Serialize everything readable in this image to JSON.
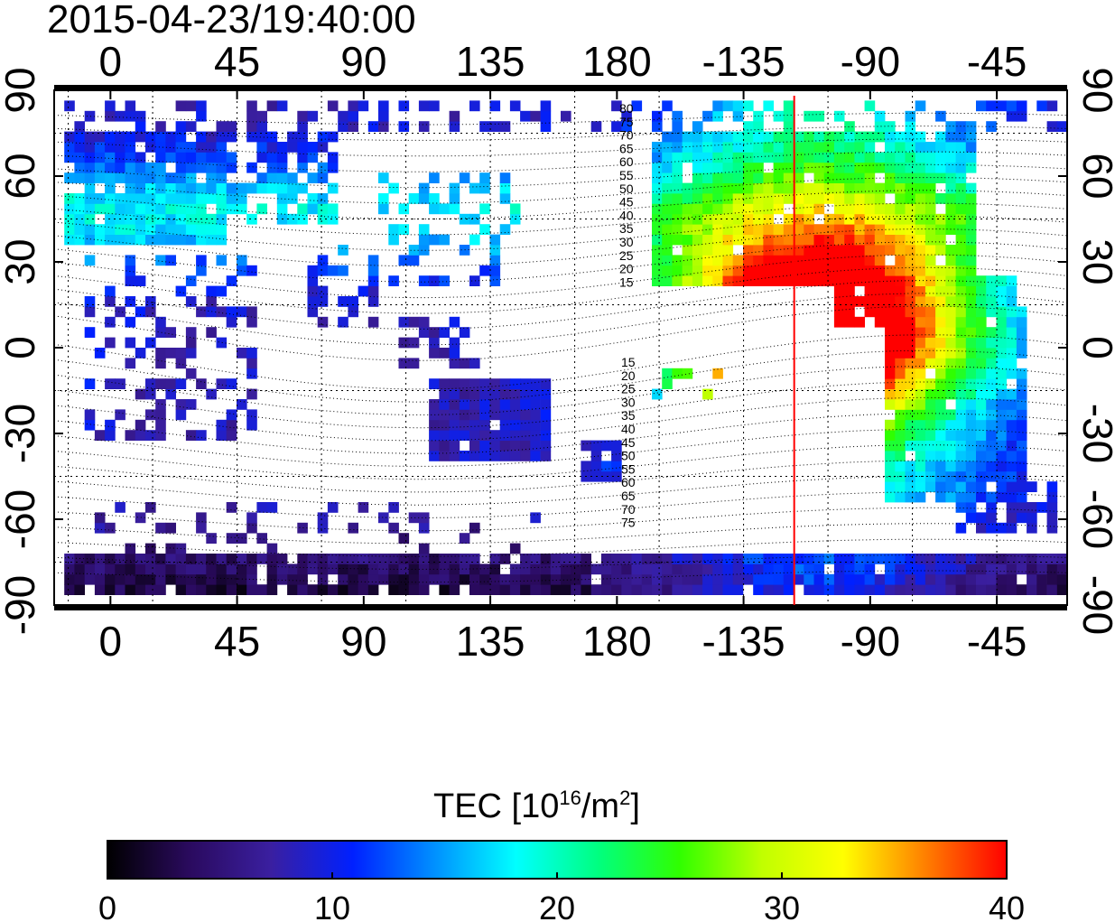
{
  "title": "2015-04-23/19:40:00",
  "map": {
    "lon_ticks": [
      {
        "lon": 0,
        "label": "0"
      },
      {
        "lon": 45,
        "label": "45"
      },
      {
        "lon": 90,
        "label": "90"
      },
      {
        "lon": 135,
        "label": "135"
      },
      {
        "lon": 180,
        "label": "180"
      },
      {
        "lon": 225,
        "label": "-135"
      },
      {
        "lon": 270,
        "label": "-90"
      },
      {
        "lon": 315,
        "label": "-45"
      }
    ],
    "lat_ticks": [
      {
        "lat": 90,
        "label": "90"
      },
      {
        "lat": 60,
        "label": "60"
      },
      {
        "lat": 30,
        "label": "30"
      },
      {
        "lat": 0,
        "label": "0"
      },
      {
        "lat": -30,
        "label": "-30"
      },
      {
        "lat": -60,
        "label": "-60"
      },
      {
        "lat": -90,
        "label": "-90"
      }
    ],
    "lon_range": [
      -20,
      340
    ],
    "lat_range": [
      -90,
      90
    ],
    "grid": true,
    "terminator_lon": 243,
    "terminator_color": "#ff0000",
    "contour_labels_north": [
      "80",
      "75",
      "70",
      "65",
      "60",
      "55",
      "50",
      "45",
      "40",
      "35",
      "30",
      "25",
      "20",
      "15"
    ],
    "contour_labels_south": [
      "15",
      "20",
      "25",
      "30",
      "35",
      "40",
      "45",
      "50",
      "55",
      "60",
      "65",
      "70",
      "75"
    ]
  },
  "colorbar": {
    "label_prefix": "TEC  [10",
    "label_sup1": "16",
    "label_mid": "/m",
    "label_sup2": "2",
    "label_suffix": "]",
    "min": 0,
    "max": 40,
    "ticks": [
      "0",
      "10",
      "20",
      "30",
      "40"
    ],
    "stops": [
      "#000000",
      "#2a0a5e",
      "#3a1fa0",
      "#0020ff",
      "#0090ff",
      "#00ffff",
      "#00ff80",
      "#30ff00",
      "#c0ff00",
      "#ffff00",
      "#ff8000",
      "#ff0000"
    ]
  }
}
